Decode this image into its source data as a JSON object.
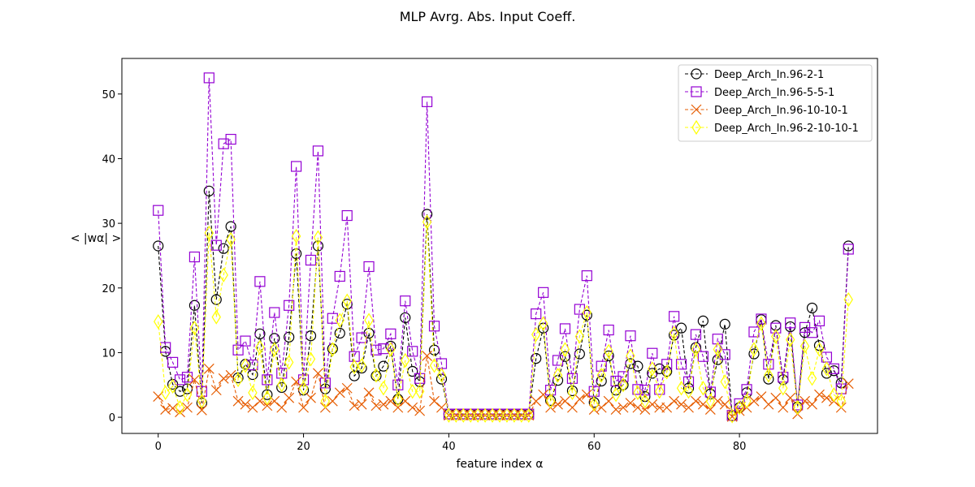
{
  "chart_data": {
    "type": "line",
    "title": "MLP Avrg. Abs. Input Coeff.",
    "xlabel": "feature index α",
    "ylabel": "< |wα| >",
    "xlim": [
      -5,
      99
    ],
    "ylim": [
      -2.5,
      55.5
    ],
    "xticks": [
      0,
      20,
      40,
      60,
      80
    ],
    "yticks": [
      0,
      10,
      20,
      30,
      40,
      50
    ],
    "grid": false,
    "legend_position": "top-right",
    "series": [
      {
        "name": "Deep_Arch_In.96-2-1",
        "color": "#000000",
        "marker": "circle",
        "values": [
          26.5,
          10.2,
          5.1,
          4.0,
          4.4,
          17.3,
          2.2,
          35.0,
          18.2,
          26.1,
          29.5,
          6.1,
          8.2,
          6.6,
          12.9,
          3.5,
          12.2,
          4.6,
          12.4,
          25.3,
          4.2,
          12.6,
          26.5,
          4.4,
          10.6,
          13.0,
          17.5,
          6.4,
          7.6,
          13.0,
          6.4,
          7.9,
          11.0,
          2.8,
          15.4,
          7.1,
          5.5,
          31.4,
          10.4,
          5.9,
          0.5,
          0.5,
          0.5,
          0.5,
          0.5,
          0.5,
          0.5,
          0.5,
          0.5,
          0.5,
          0.5,
          0.5,
          9.1,
          13.8,
          2.6,
          5.7,
          9.4,
          4.1,
          9.8,
          15.8,
          2.3,
          5.6,
          9.5,
          4.2,
          5.0,
          8.3,
          7.9,
          3.2,
          6.8,
          7.5,
          7.1,
          12.7,
          13.8,
          4.5,
          10.8,
          14.9,
          3.6,
          8.9,
          14.4,
          0.2,
          1.5,
          3.8,
          9.8,
          15.1,
          5.9,
          14.2,
          5.8,
          14.0,
          1.6,
          13.1,
          16.9,
          11.1,
          6.8,
          7.2,
          5.3,
          26.5
        ]
      },
      {
        "name": "Deep_Arch_In.96-5-5-1",
        "color": "#9400d3",
        "marker": "square",
        "values": [
          32.0,
          10.8,
          8.5,
          5.8,
          6.2,
          24.8,
          4.0,
          52.5,
          26.6,
          42.3,
          43.0,
          10.4,
          11.8,
          8.1,
          21.0,
          5.8,
          16.2,
          6.8,
          17.3,
          38.8,
          5.8,
          24.3,
          41.2,
          5.3,
          15.3,
          21.8,
          31.2,
          9.4,
          12.3,
          23.3,
          10.4,
          10.6,
          12.9,
          5.0,
          18.0,
          10.2,
          6.0,
          48.8,
          14.1,
          8.3,
          0.5,
          0.5,
          0.5,
          0.5,
          0.5,
          0.5,
          0.5,
          0.5,
          0.5,
          0.5,
          0.5,
          0.5,
          16.0,
          19.3,
          4.2,
          8.8,
          13.7,
          6.0,
          16.7,
          21.9,
          4.0,
          7.9,
          13.5,
          5.6,
          6.3,
          12.6,
          4.3,
          4.2,
          9.9,
          4.3,
          8.2,
          15.6,
          8.2,
          5.5,
          12.8,
          9.4,
          3.9,
          12.1,
          9.7,
          0.3,
          2.1,
          4.3,
          13.2,
          15.2,
          8.2,
          13.8,
          6.2,
          14.6,
          1.9,
          13.9,
          13.1,
          14.9,
          9.3,
          7.5,
          4.4,
          26.0
        ]
      },
      {
        "name": "Deep_Arch_In.96-10-10-1",
        "color": "#e65c00",
        "marker": "x",
        "values": [
          3.2,
          1.2,
          1.4,
          0.8,
          1.5,
          5.8,
          1.1,
          7.5,
          4.2,
          6.0,
          6.5,
          2.5,
          2.0,
          1.5,
          2.5,
          1.8,
          2.5,
          1.5,
          3.0,
          5.5,
          1.5,
          3.0,
          6.8,
          1.5,
          2.5,
          3.8,
          4.5,
          1.8,
          2.0,
          3.8,
          1.8,
          2.0,
          2.5,
          1.5,
          2.5,
          1.5,
          1.0,
          9.5,
          2.5,
          1.5,
          0.3,
          0.3,
          0.3,
          0.3,
          0.3,
          0.3,
          0.3,
          0.3,
          0.3,
          0.3,
          0.3,
          0.3,
          2.5,
          3.5,
          1.5,
          2.0,
          2.5,
          1.5,
          2.8,
          3.5,
          1.2,
          1.5,
          2.5,
          1.2,
          1.5,
          2.2,
          1.5,
          1.2,
          2.0,
          1.5,
          1.5,
          2.5,
          2.0,
          1.5,
          2.5,
          2.0,
          1.2,
          2.5,
          2.0,
          0.1,
          1.0,
          1.5,
          2.5,
          3.2,
          2.0,
          3.0,
          1.5,
          3.0,
          0.5,
          2.5,
          2.0,
          3.5,
          3.0,
          2.5,
          1.5,
          5.2
        ]
      },
      {
        "name": "Deep_Arch_In.96-2-10-10-1",
        "color": "#ffff00",
        "marker": "diamond",
        "values": [
          14.8,
          3.8,
          4.8,
          1.5,
          3.5,
          13.8,
          2.5,
          28.5,
          15.5,
          22.0,
          27.5,
          5.8,
          8.0,
          3.8,
          10.8,
          3.0,
          10.5,
          5.0,
          8.5,
          28.0,
          4.5,
          9.0,
          27.8,
          2.5,
          10.5,
          15.0,
          18.0,
          7.8,
          8.0,
          15.0,
          6.5,
          4.5,
          10.5,
          2.8,
          8.8,
          4.0,
          4.0,
          30.2,
          8.0,
          6.5,
          0.3,
          0.3,
          0.3,
          0.3,
          0.3,
          0.3,
          0.3,
          0.3,
          0.3,
          0.3,
          0.3,
          0.3,
          12.8,
          14.5,
          2.5,
          6.5,
          10.5,
          3.8,
          12.5,
          16.2,
          2.0,
          6.5,
          10.2,
          3.5,
          5.0,
          9.5,
          3.8,
          2.5,
          7.5,
          4.0,
          7.0,
          13.0,
          4.5,
          4.0,
          10.5,
          4.5,
          2.5,
          10.5,
          5.5,
          0.2,
          1.5,
          2.5,
          10.5,
          14.5,
          6.5,
          12.5,
          4.5,
          12.0,
          1.5,
          11.0,
          6.0,
          10.5,
          7.5,
          3.5,
          2.5,
          18.2
        ]
      }
    ]
  }
}
